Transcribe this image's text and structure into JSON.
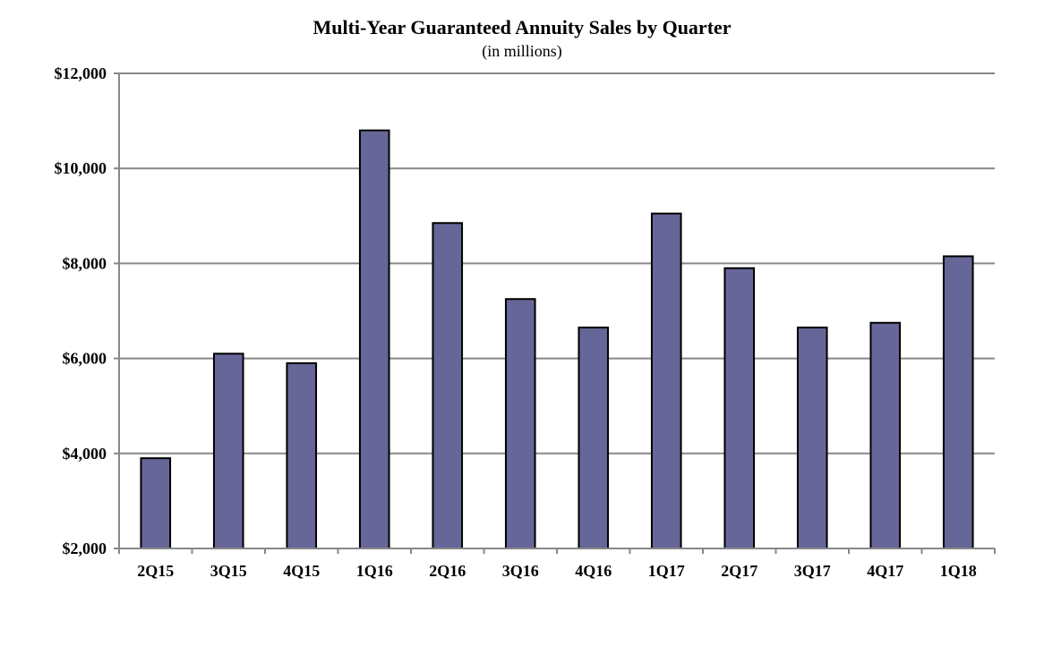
{
  "chart_data": {
    "type": "bar",
    "title": "Multi-Year Guaranteed Annuity Sales by Quarter",
    "subtitle": "(in millions)",
    "xlabel": "",
    "ylabel": "",
    "categories": [
      "2Q15",
      "3Q15",
      "4Q15",
      "1Q16",
      "2Q16",
      "3Q16",
      "4Q16",
      "1Q17",
      "2Q17",
      "3Q17",
      "4Q17",
      "1Q18"
    ],
    "values": [
      3900,
      6100,
      5900,
      10800,
      8850,
      7250,
      6650,
      9050,
      7900,
      6650,
      6750,
      8150
    ],
    "ylim": [
      2000,
      12000
    ],
    "yticks": [
      2000,
      4000,
      6000,
      8000,
      10000,
      12000
    ],
    "ytick_labels": [
      "$2,000",
      "$4,000",
      "$6,000",
      "$8,000",
      "$10,000",
      "$12,000"
    ],
    "grid": true,
    "legend": "none",
    "bar_color": "#666699",
    "bar_edge_color": "#000000"
  }
}
